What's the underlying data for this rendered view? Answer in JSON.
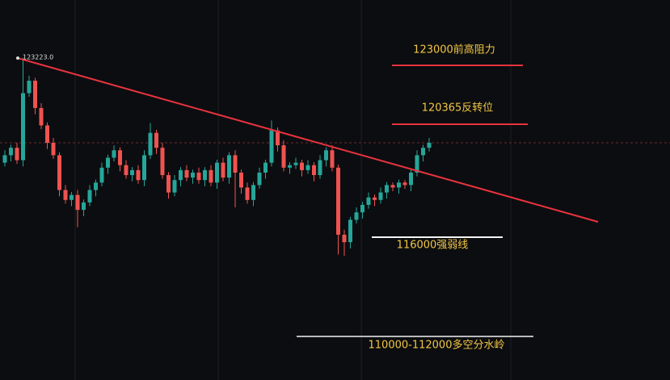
{
  "chart_data": {
    "type": "candlestick",
    "annotations": [
      "123223.0",
      "123000前高阻力",
      "120365反转位",
      "116000强弱线",
      "110000-112000多空分水岭"
    ],
    "up_color": "#26a69a",
    "down_color": "#ef5350",
    "ylim": [
      110250,
      125550
    ],
    "open": [
      119000,
      119300,
      119600,
      119100,
      121800,
      122300,
      121200,
      120500,
      119800,
      119300,
      117900,
      117500,
      117700,
      117100,
      117400,
      117900,
      118200,
      118800,
      119200,
      119500,
      118900,
      118500,
      118700,
      118300,
      119300,
      120200,
      119600,
      118500,
      117800,
      118300,
      118700,
      118400,
      118600,
      118300,
      118700,
      118200,
      119000,
      118400,
      119300,
      118600,
      118000,
      117500,
      118100,
      118600,
      119000,
      120300,
      119700,
      118800,
      118900,
      119000,
      118700,
      118900,
      118500,
      119100,
      119500,
      118800,
      116100,
      115800,
      116700,
      117000,
      117300,
      117600,
      117500,
      117800,
      118100,
      118000,
      118200,
      118100,
      118600,
      119300,
      119600
    ],
    "high": [
      119500,
      119720,
      119800,
      123223,
      122500,
      122420,
      121400,
      120620,
      120000,
      119420,
      118100,
      117820,
      117900,
      117520,
      118100,
      118320,
      119000,
      119320,
      119700,
      119620,
      119100,
      118820,
      118900,
      119500,
      120600,
      120320,
      119800,
      118620,
      118500,
      118820,
      118900,
      118720,
      118800,
      118820,
      118900,
      119120,
      119200,
      119420,
      119500,
      118720,
      118200,
      118220,
      118800,
      119120,
      120700,
      120420,
      119900,
      119020,
      119200,
      119120,
      119100,
      119020,
      119300,
      119620,
      119700,
      118920,
      116300,
      116820,
      117200,
      117420,
      117800,
      117720,
      118000,
      118220,
      118200,
      118320,
      118300,
      118720,
      119500,
      119720,
      120000
    ],
    "low": [
      118850,
      119050,
      118950,
      118850,
      121650,
      120950,
      120350,
      119550,
      119150,
      117650,
      117350,
      117250,
      116400,
      116850,
      117250,
      117650,
      118050,
      118550,
      119050,
      118650,
      118350,
      118250,
      118150,
      118050,
      119150,
      119350,
      118350,
      117550,
      117650,
      118050,
      118250,
      118150,
      118150,
      118050,
      118050,
      117950,
      118250,
      118150,
      117200,
      117750,
      117350,
      117250,
      117950,
      118350,
      118850,
      119450,
      118650,
      118550,
      118750,
      118450,
      118550,
      118250,
      118350,
      118850,
      118650,
      115300,
      115250,
      115550,
      116550,
      116750,
      117150,
      117250,
      117350,
      117550,
      117850,
      117750,
      117950,
      117850,
      118450,
      119050,
      119450
    ],
    "close": [
      119300,
      119600,
      119100,
      121800,
      122300,
      121200,
      120500,
      119800,
      119300,
      117900,
      117500,
      117700,
      117100,
      117400,
      117900,
      118200,
      118800,
      119200,
      119500,
      118900,
      118500,
      118700,
      118300,
      119300,
      120200,
      119600,
      118500,
      117800,
      118300,
      118700,
      118400,
      118600,
      118300,
      118700,
      118200,
      119000,
      118400,
      119300,
      118600,
      118000,
      117500,
      118100,
      118600,
      119000,
      120300,
      119700,
      118800,
      118900,
      119000,
      118700,
      118900,
      118500,
      119100,
      119500,
      118800,
      116100,
      115800,
      116700,
      117000,
      117300,
      117600,
      117500,
      117800,
      118100,
      118000,
      118200,
      118100,
      118600,
      119300,
      119600,
      119800
    ]
  }
}
